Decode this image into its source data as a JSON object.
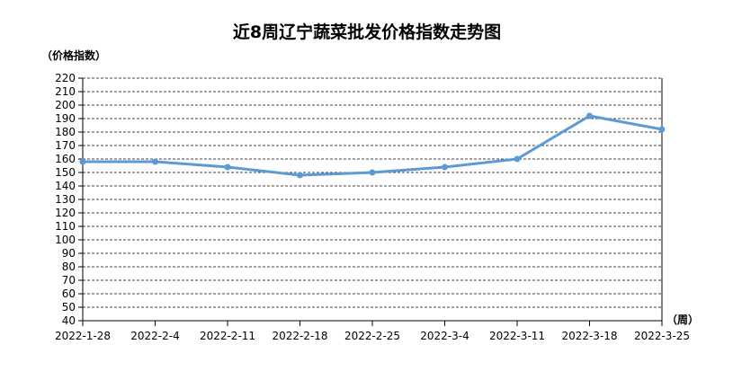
{
  "chart_data": {
    "type": "line",
    "title": "近8周辽宁蔬菜批发价格指数走势图",
    "ylabel": "（价格指数）",
    "xlabel": "（周）",
    "categories": [
      "2022-1-28",
      "2022-2-4",
      "2022-2-11",
      "2022-2-18",
      "2022-2-25",
      "2022-3-4",
      "2022-3-11",
      "2022-3-18",
      "2022-3-25"
    ],
    "series": [
      {
        "values": [
          158,
          158,
          154,
          148,
          150,
          154,
          160,
          192,
          182
        ]
      }
    ],
    "ylim": [
      40,
      220
    ],
    "ytick_step": 10,
    "grid": true,
    "grid_style": "dashed",
    "line_color": "#5b9bd5",
    "axis_color": "#000000"
  }
}
